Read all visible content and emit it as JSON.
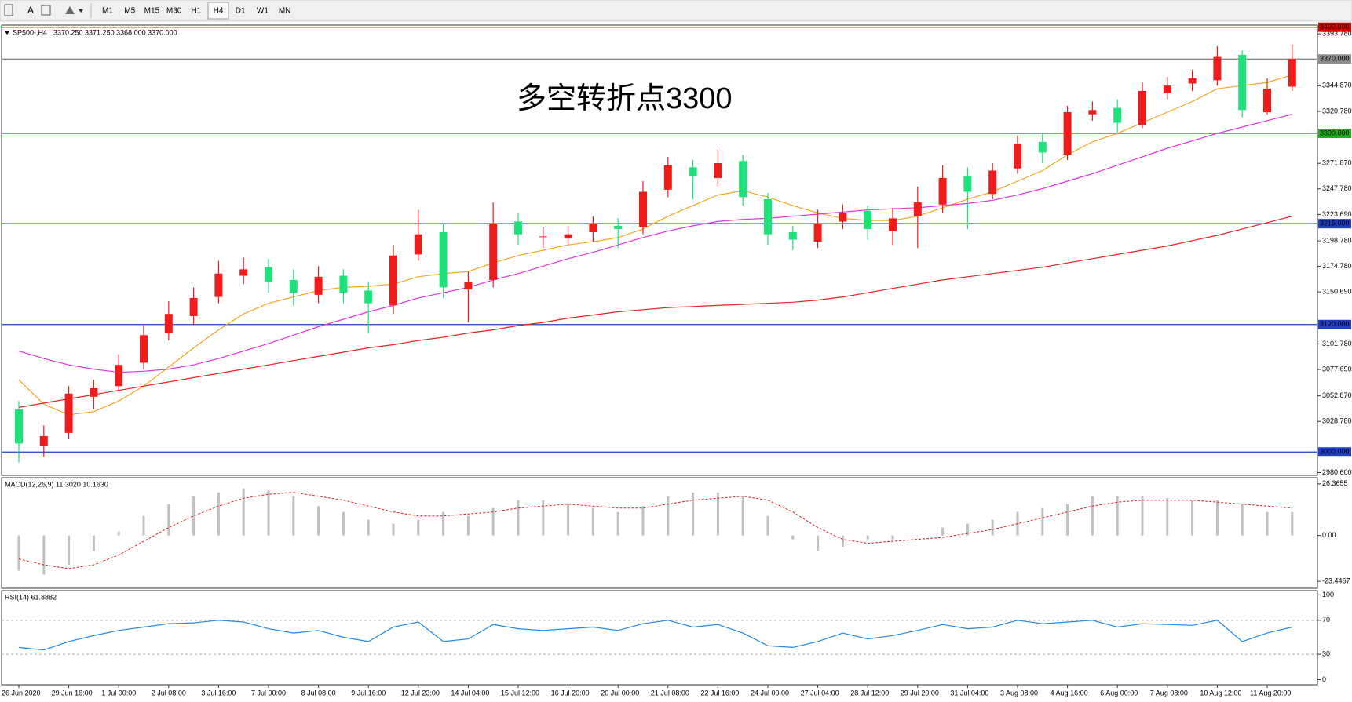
{
  "toolbar": {
    "text_tool": "A",
    "buttons": [
      "M1",
      "M5",
      "M15",
      "M30",
      "H1",
      "H4",
      "D1",
      "W1",
      "MN"
    ],
    "active": "H4"
  },
  "chart_data": [
    {
      "type": "candlestick",
      "title": "SP500-,H4",
      "quote": "3370.250 3371.250 3368.000 3370.000",
      "annotation": "多空转折点3300",
      "annotation_color": "#e8101a",
      "up_color": "#f01c1c",
      "down_color": "#1de27a",
      "categories": [
        "26 Jun 2020",
        null,
        "29 Jun 16:00",
        null,
        "1 Jul 00:00",
        null,
        "2 Jul 08:00",
        null,
        "3 Jul 16:00",
        null,
        "7 Jul 00:00",
        null,
        "8 Jul 08:00",
        null,
        "9 Jul 16:00",
        null,
        "12 Jul 23:00",
        null,
        "14 Jul 04:00",
        null,
        "15 Jul 12:00",
        null,
        "16 Jul 20:00",
        null,
        "20 Jul 00:00",
        null,
        "21 Jul 08:00",
        null,
        "22 Jul 16:00",
        null,
        "24 Jul 00:00",
        null,
        "27 Jul 04:00",
        null,
        "28 Jul 12:00",
        null,
        "29 Jul 20:00",
        null,
        "31 Jul 04:00",
        null,
        "3 Aug 08:00",
        null,
        "4 Aug 16:00",
        null,
        "6 Aug 00:00",
        null,
        "7 Aug 08:00",
        null,
        "10 Aug 12:00",
        null,
        "11 Aug 20:00",
        null
      ],
      "open": [
        3040,
        3006,
        3018,
        3052,
        3062,
        3084,
        3112,
        3128,
        3146,
        3166,
        3174,
        3162,
        3148,
        3166,
        3152,
        3138,
        3186,
        3207,
        3153,
        3162,
        3217,
        3203,
        3201,
        3207,
        3213,
        3212,
        3247,
        3268,
        3258,
        3274,
        3238,
        3207,
        3198,
        3217,
        3227,
        3208,
        3222,
        3233,
        3260,
        3243,
        3267,
        3292,
        3280,
        3318,
        3324,
        3308,
        3338,
        3347,
        3350,
        3374,
        3320,
        3344
      ],
      "high": [
        3048,
        3025,
        3062,
        3068,
        3092,
        3120,
        3142,
        3155,
        3180,
        3183,
        3182,
        3172,
        3175,
        3172,
        3160,
        3195,
        3228,
        3215,
        3170,
        3235,
        3225,
        3212,
        3213,
        3222,
        3220,
        3255,
        3278,
        3275,
        3285,
        3280,
        3244,
        3213,
        3228,
        3233,
        3232,
        3230,
        3250,
        3270,
        3268,
        3272,
        3298,
        3300,
        3326,
        3330,
        3332,
        3348,
        3353,
        3360,
        3382,
        3378,
        3352,
        3384
      ],
      "low": [
        2990,
        2995,
        3012,
        3040,
        3058,
        3078,
        3105,
        3120,
        3140,
        3158,
        3150,
        3138,
        3140,
        3140,
        3112,
        3130,
        3180,
        3145,
        3122,
        3155,
        3195,
        3192,
        3195,
        3198,
        3192,
        3205,
        3240,
        3238,
        3250,
        3232,
        3195,
        3190,
        3192,
        3210,
        3200,
        3195,
        3192,
        3225,
        3210,
        3238,
        3262,
        3272,
        3275,
        3312,
        3300,
        3305,
        3332,
        3340,
        3345,
        3315,
        3318,
        3340
      ],
      "close": [
        3008,
        3015,
        3055,
        3060,
        3082,
        3110,
        3130,
        3145,
        3168,
        3172,
        3160,
        3150,
        3165,
        3150,
        3140,
        3185,
        3205,
        3155,
        3160,
        3215,
        3205,
        3203,
        3205,
        3215,
        3210,
        3245,
        3270,
        3260,
        3272,
        3240,
        3205,
        3200,
        3215,
        3225,
        3210,
        3220,
        3235,
        3258,
        3245,
        3265,
        3290,
        3282,
        3320,
        3322,
        3310,
        3340,
        3345,
        3352,
        3372,
        3322,
        3342,
        3370
      ],
      "series": [
        {
          "color": "#f5a623",
          "values": [
            3068,
            3045,
            3035,
            3038,
            3048,
            3062,
            3080,
            3098,
            3115,
            3130,
            3140,
            3146,
            3152,
            3155,
            3156,
            3158,
            3165,
            3168,
            3170,
            3178,
            3185,
            3190,
            3195,
            3198,
            3202,
            3210,
            3222,
            3232,
            3242,
            3246,
            3240,
            3232,
            3225,
            3220,
            3218,
            3218,
            3222,
            3230,
            3238,
            3245,
            3255,
            3265,
            3280,
            3292,
            3300,
            3310,
            3320,
            3330,
            3342,
            3345,
            3348,
            3355
          ]
        },
        {
          "color": "#e033e0",
          "values": [
            3095,
            3088,
            3082,
            3078,
            3075,
            3076,
            3078,
            3082,
            3088,
            3095,
            3102,
            3110,
            3118,
            3125,
            3132,
            3138,
            3145,
            3150,
            3155,
            3162,
            3168,
            3175,
            3182,
            3188,
            3195,
            3202,
            3208,
            3213,
            3217,
            3219,
            3220,
            3222,
            3224,
            3226,
            3228,
            3229,
            3230,
            3232,
            3234,
            3237,
            3242,
            3248,
            3255,
            3262,
            3270,
            3278,
            3286,
            3293,
            3300,
            3306,
            3312,
            3318
          ]
        },
        {
          "color": "#e82020",
          "values": [
            3042,
            3046,
            3050,
            3054,
            3058,
            3062,
            3066,
            3070,
            3074,
            3078,
            3082,
            3086,
            3090,
            3094,
            3098,
            3101,
            3105,
            3108,
            3112,
            3115,
            3119,
            3122,
            3126,
            3129,
            3132,
            3134,
            3136,
            3137,
            3138,
            3139,
            3140,
            3141,
            3143,
            3146,
            3150,
            3154,
            3158,
            3162,
            3165,
            3168,
            3171,
            3174,
            3178,
            3182,
            3186,
            3190,
            3194,
            3199,
            3204,
            3210,
            3216,
            3222
          ]
        }
      ],
      "levels": [
        {
          "value": 3400,
          "label": "3400.000",
          "color": "#e00000"
        },
        {
          "value": 3370,
          "label": "3370.000",
          "color": "#8c8c8c"
        },
        {
          "value": 3300,
          "label": "3300.000",
          "color": "#22b022"
        },
        {
          "value": 3215,
          "label": "3215.000",
          "color": "#2040c0"
        },
        {
          "value": 3120,
          "label": "3120.000",
          "color": "#2040c0"
        },
        {
          "value": 3000,
          "label": "3000.000",
          "color": "#2040c0"
        }
      ],
      "ylim": [
        2978,
        3402
      ],
      "yticks": [
        {
          "value": 3393.78,
          "label": "3393.780"
        },
        {
          "value": 3344.87,
          "label": "3344.870"
        },
        {
          "value": 3320.78,
          "label": "3320.780"
        },
        {
          "value": 3271.87,
          "label": "3271.870"
        },
        {
          "value": 3247.78,
          "label": "3247.780"
        },
        {
          "value": 3223.69,
          "label": "3223.690"
        },
        {
          "value": 3198.78,
          "label": "3198.780"
        },
        {
          "value": 3174.78,
          "label": "3174.780"
        },
        {
          "value": 3150.69,
          "label": "3150.690"
        },
        {
          "value": 3101.78,
          "label": "3101.780"
        },
        {
          "value": 3077.69,
          "label": "3077.690"
        },
        {
          "value": 3052.87,
          "label": "3052.870"
        },
        {
          "value": 3028.78,
          "label": "3028.780"
        },
        {
          "value": 2980.6,
          "label": "2980.600"
        }
      ]
    },
    {
      "type": "macd",
      "title": "MACD(12,26,9) 11.3020 10.1630",
      "hist_color": "#c0c0c0",
      "signal_color": "#e02020",
      "histogram": [
        -18,
        -20,
        -15,
        -8,
        2,
        10,
        16,
        20,
        22,
        24,
        23,
        20,
        15,
        12,
        8,
        6,
        8,
        12,
        10,
        14,
        18,
        18,
        16,
        14,
        12,
        15,
        20,
        22,
        22,
        20,
        10,
        -2,
        -8,
        -6,
        -2,
        -2,
        0,
        4,
        6,
        8,
        12,
        14,
        16,
        20,
        20,
        20,
        19,
        18,
        18,
        16,
        12,
        12
      ],
      "signal": [
        -12,
        -15,
        -17,
        -15,
        -10,
        -3,
        4,
        10,
        15,
        19,
        21,
        22,
        20,
        18,
        15,
        12,
        10,
        10,
        11,
        12,
        14,
        15,
        16,
        15,
        14,
        14,
        16,
        18,
        19,
        20,
        18,
        12,
        4,
        -2,
        -4,
        -3,
        -2,
        -1,
        1,
        3,
        6,
        9,
        12,
        15,
        17,
        18,
        18,
        18,
        17,
        16,
        15,
        14
      ],
      "ylim": [
        -27,
        29.5
      ],
      "yticks": [
        26.3655,
        {
          "value": 0,
          "label": "0.00"
        },
        -23.4467
      ]
    },
    {
      "type": "line",
      "title": "RSI(14) 61.8882",
      "color": "#1e88e5",
      "values": [
        38,
        35,
        45,
        52,
        58,
        62,
        66,
        67,
        70,
        68,
        60,
        55,
        58,
        50,
        45,
        62,
        68,
        45,
        48,
        65,
        60,
        58,
        60,
        62,
        58,
        66,
        70,
        62,
        65,
        55,
        40,
        38,
        45,
        55,
        48,
        52,
        58,
        65,
        60,
        62,
        70,
        66,
        68,
        70,
        62,
        66,
        65,
        64,
        70,
        45,
        55,
        62
      ],
      "levels": [
        70,
        30
      ],
      "ylim": [
        -6,
        105
      ],
      "yticks": [
        100,
        70,
        30,
        0
      ]
    }
  ]
}
